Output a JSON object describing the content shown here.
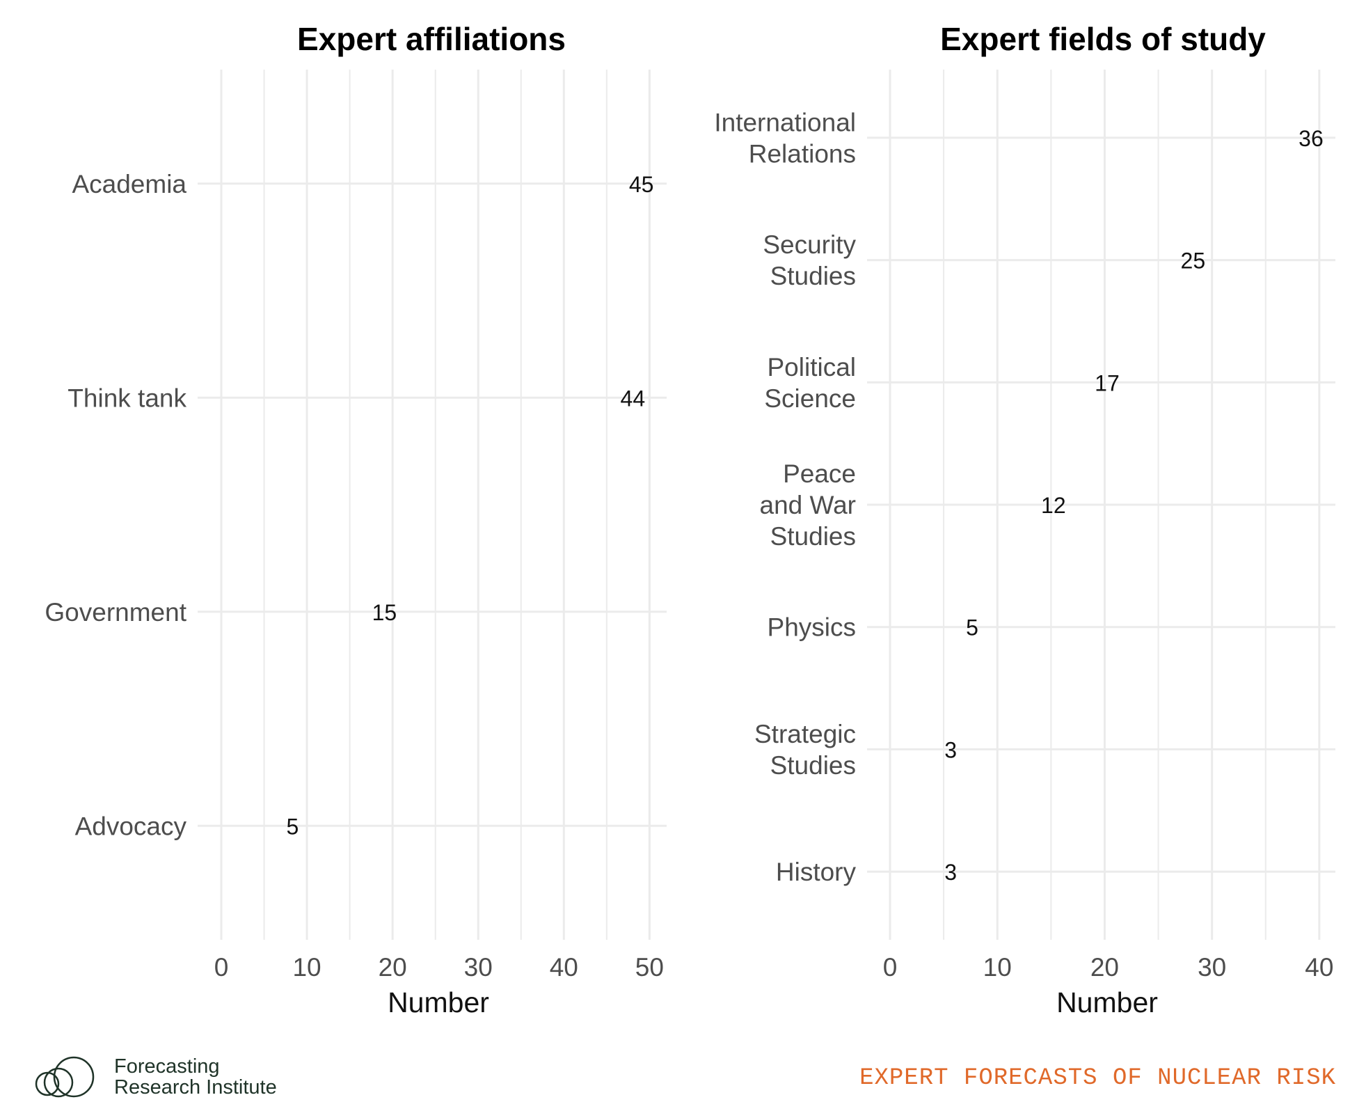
{
  "chart_data": [
    {
      "type": "bar",
      "orientation": "horizontal",
      "title": "Expert affiliations",
      "xlabel": "Number",
      "xlim": [
        0,
        52
      ],
      "xticks": [
        0,
        10,
        20,
        30,
        40,
        50
      ],
      "categories": [
        [
          "Academia"
        ],
        [
          "Think tank"
        ],
        [
          "Government"
        ],
        [
          "Advocacy"
        ]
      ],
      "values": [
        45,
        44,
        15,
        5
      ],
      "data_labels": true,
      "bar_color": "#1f82b2",
      "grid": true
    },
    {
      "type": "bar",
      "orientation": "horizontal",
      "title": "Expert fields of study",
      "xlabel": "Number",
      "xlim": [
        0,
        41.5
      ],
      "xticks": [
        0,
        10,
        20,
        30,
        40
      ],
      "categories": [
        [
          "International",
          "Relations"
        ],
        [
          "Security",
          "Studies"
        ],
        [
          "Political",
          "Science"
        ],
        [
          "Peace",
          "and War",
          "Studies"
        ],
        [
          "Physics"
        ],
        [
          "Strategic",
          "Studies"
        ],
        [
          "History"
        ]
      ],
      "values": [
        36,
        25,
        17,
        12,
        5,
        3,
        3
      ],
      "data_labels": true,
      "bar_color": "#1f82b2",
      "grid": true
    }
  ],
  "footer": {
    "brand_line1": "Forecasting",
    "brand_line2": "Research Institute",
    "brand_icon": "overlapping-circles-logo-icon",
    "tagline": "EXPERT FORECASTS OF NUCLEAR RISK"
  },
  "colors": {
    "bar": "#1f82b2",
    "grid": "#ebebeb",
    "tagline": "#e0692a",
    "brand": "#1f3328"
  }
}
